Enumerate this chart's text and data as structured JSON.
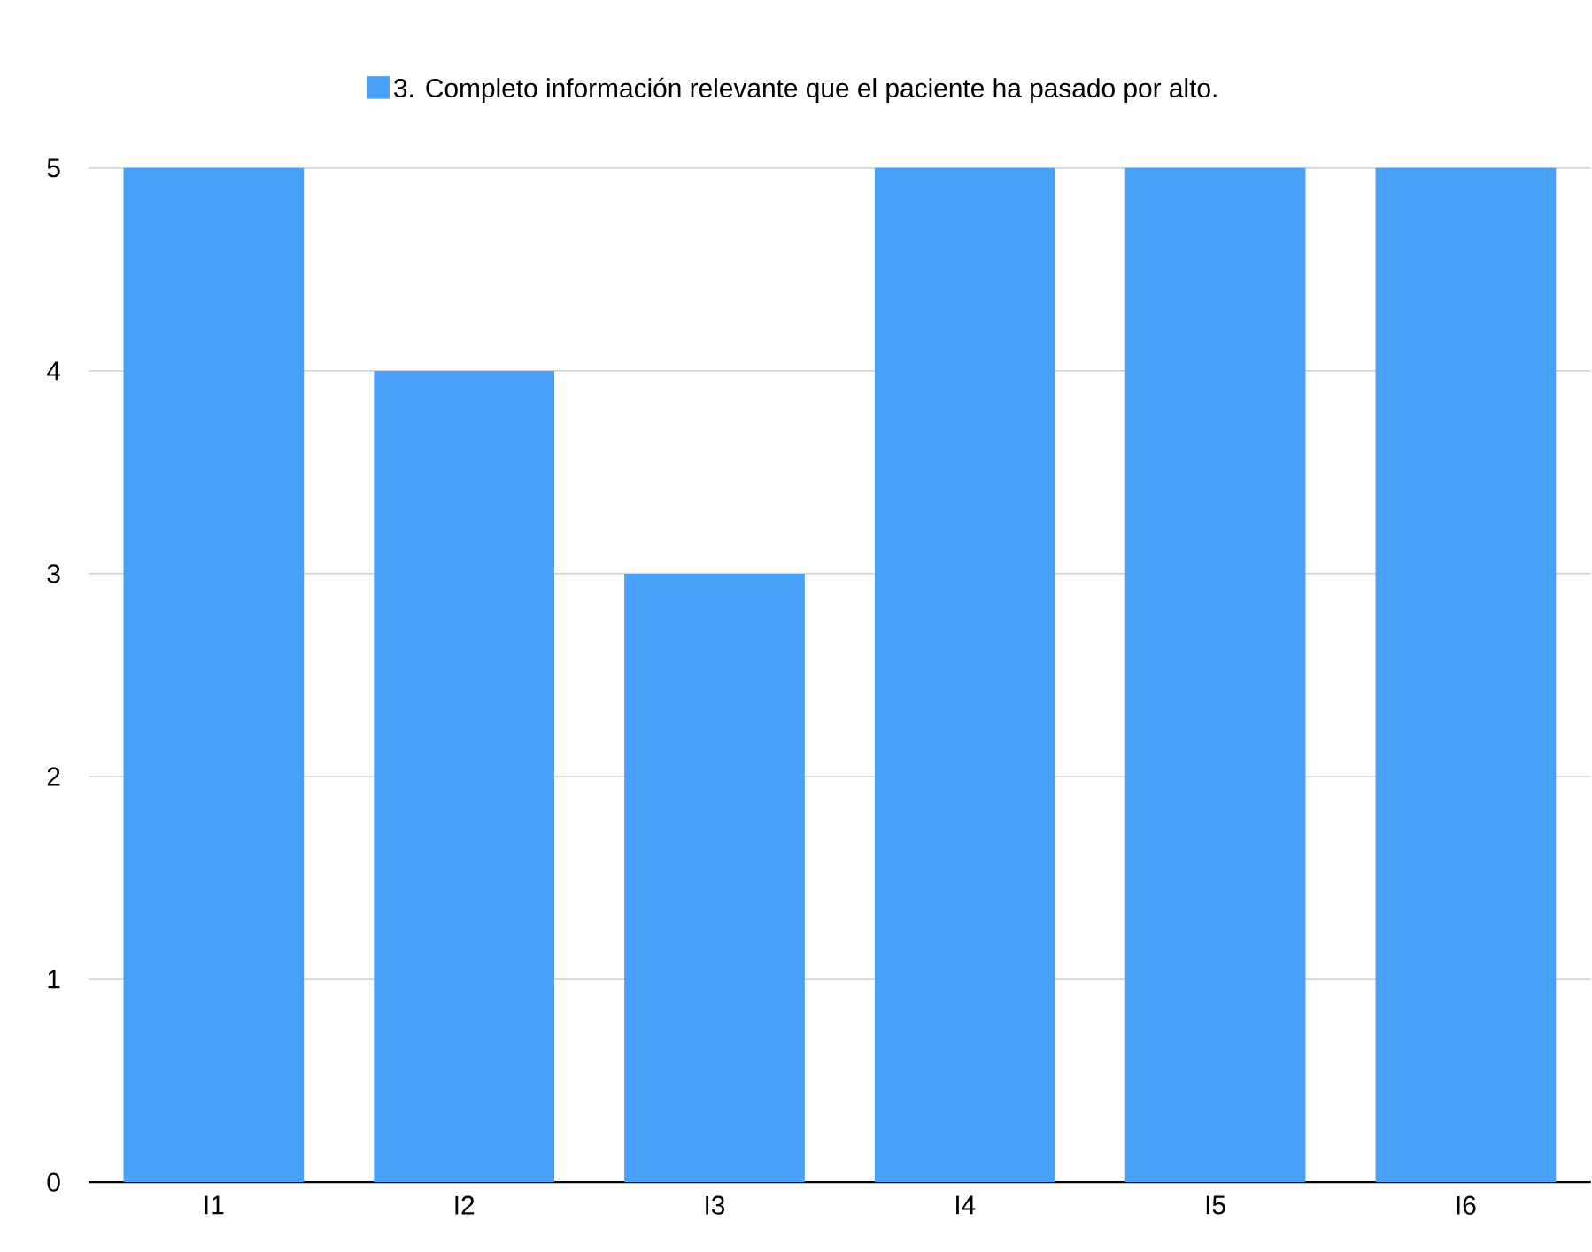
{
  "chart_data": {
    "type": "bar",
    "categories": [
      "I1",
      "I2",
      "I3",
      "I4",
      "I5",
      "I6"
    ],
    "series": [
      {
        "name": "3. Completo información relevante que el paciente ha pasado por alto.",
        "color": "#48a0f8",
        "values": [
          5,
          4,
          3,
          5,
          5,
          5
        ]
      }
    ],
    "ylim": [
      0,
      5
    ],
    "yticks": [
      0,
      1,
      2,
      3,
      4,
      5
    ],
    "grid": "y",
    "legend": "top"
  }
}
